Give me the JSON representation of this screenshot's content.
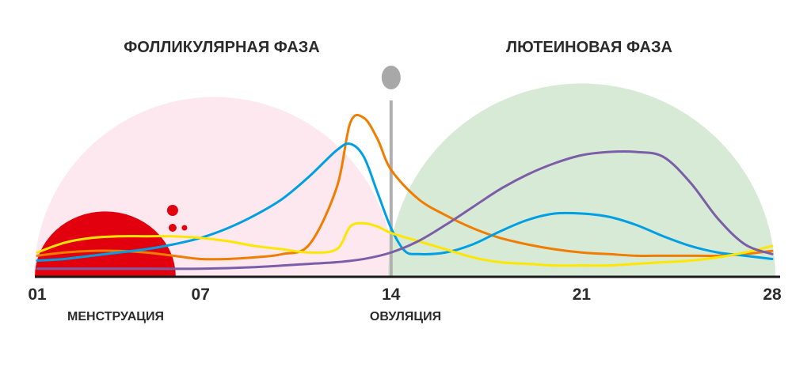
{
  "chart_data": {
    "type": "line",
    "phases": [
      {
        "name": "ФОЛЛИКУЛЯРНАЯ ФАЗА",
        "from": 1,
        "to": 14,
        "color": "#fce8ee"
      },
      {
        "name": "ЛЮТЕИНОВАЯ ФАЗА",
        "from": 14,
        "to": 28,
        "color": "#d6ead6"
      }
    ],
    "x_ticks": [
      "01",
      "07",
      "14",
      "21",
      "28"
    ],
    "x_tick_values": [
      1,
      7,
      14,
      21,
      28
    ],
    "events": [
      {
        "label": "МЕНСТРУАЦИЯ",
        "day": 1,
        "to": 6,
        "color": "#e2000f"
      },
      {
        "label": "ОВУЛЯЦИЯ",
        "day": 14,
        "color": "#b0b0b0"
      }
    ],
    "xlim": [
      1,
      28
    ],
    "ylim": [
      0,
      100
    ],
    "series": [
      {
        "color": "#f07d00",
        "x": [
          1,
          2,
          3,
          4,
          5,
          6,
          7,
          8,
          9,
          10,
          11,
          12,
          12.5,
          13,
          13.5,
          14,
          15,
          16,
          17,
          18,
          19,
          20,
          21,
          22,
          23,
          24,
          25,
          26,
          27,
          28
        ],
        "y": [
          13,
          15,
          16,
          16,
          15,
          13,
          11,
          11,
          12,
          14,
          20,
          55,
          95,
          98,
          85,
          66,
          48,
          38,
          30,
          24,
          20,
          17,
          15,
          14,
          13,
          13,
          13,
          13,
          14,
          16
        ]
      },
      {
        "color": "#009fe3",
        "x": [
          1,
          2,
          3,
          4,
          5,
          6,
          7,
          8,
          9,
          10,
          11,
          12,
          12.5,
          13,
          13.5,
          14,
          14.5,
          15,
          16,
          17,
          18,
          19,
          20,
          21,
          22,
          23,
          24,
          25,
          26,
          27,
          28
        ],
        "y": [
          10,
          11,
          13,
          15,
          17,
          20,
          24,
          30,
          38,
          48,
          62,
          78,
          82,
          74,
          52,
          30,
          16,
          14,
          15,
          20,
          28,
          35,
          39,
          39,
          37,
          32,
          25,
          19,
          15,
          13,
          11
        ]
      },
      {
        "color": "#ffe600",
        "x": [
          1,
          2,
          3,
          4,
          5,
          6,
          7,
          8,
          9,
          10,
          11,
          12,
          12.5,
          13,
          13.5,
          14,
          15,
          16,
          17,
          18,
          19,
          20,
          21,
          22,
          23,
          24,
          25,
          26,
          27,
          28
        ],
        "y": [
          15,
          21,
          24,
          25,
          25,
          25,
          24,
          22,
          19,
          17,
          15,
          17,
          31,
          33,
          31,
          27,
          22,
          17,
          12,
          9,
          8,
          7,
          7,
          7,
          8,
          9,
          10,
          12,
          15,
          19
        ]
      },
      {
        "color": "#7b5ea7",
        "x": [
          1,
          3,
          5,
          7,
          9,
          11,
          12,
          13,
          14,
          15,
          16,
          17,
          18,
          19,
          20,
          21,
          22,
          23,
          24,
          25,
          26,
          27,
          28
        ],
        "y": [
          5,
          5,
          5,
          5,
          6,
          8,
          9,
          11,
          15,
          22,
          32,
          43,
          54,
          63,
          70,
          75,
          77,
          77,
          74,
          58,
          36,
          20,
          14
        ]
      }
    ]
  }
}
